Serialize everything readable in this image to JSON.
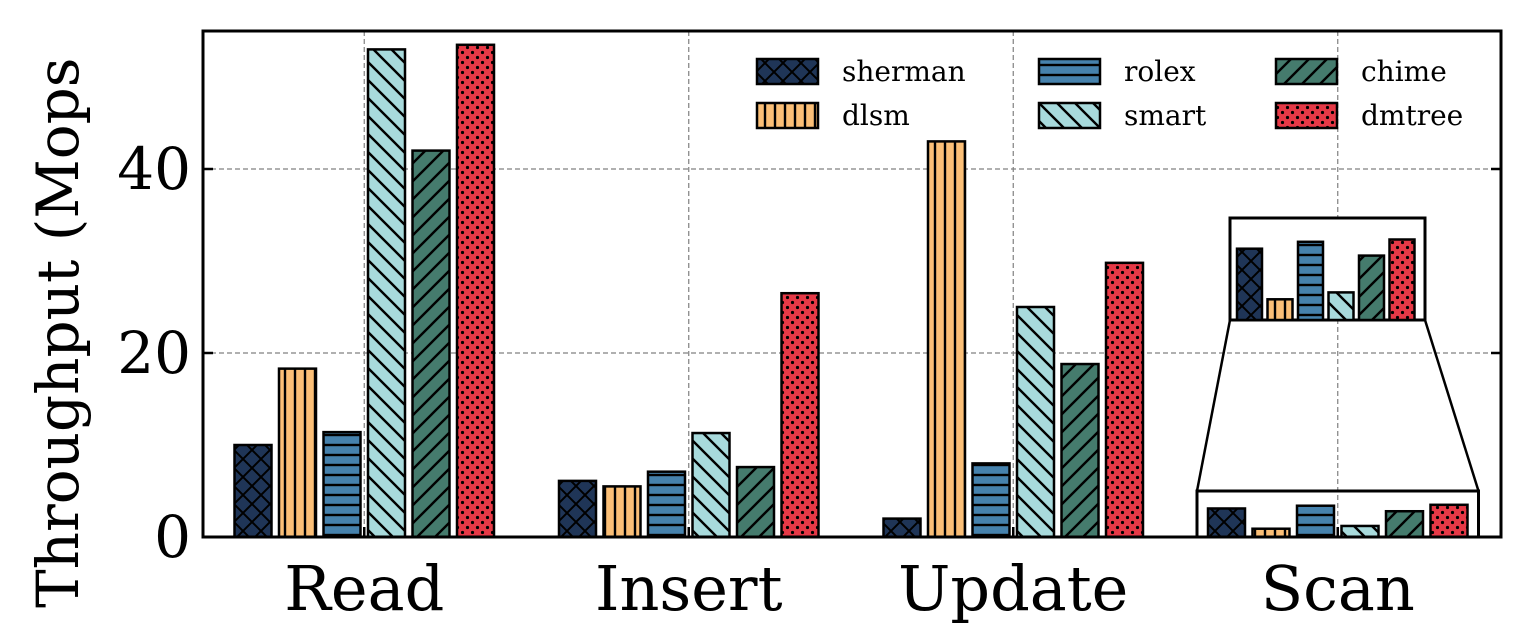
{
  "chart_data": {
    "type": "bar",
    "title": "",
    "xlabel": "",
    "ylabel": "Throughput (Mops",
    "ylim": [
      0,
      55
    ],
    "yticks": [
      0,
      20,
      40
    ],
    "grid": true,
    "legend_position": "top-right",
    "categories": [
      "Read",
      "Insert",
      "Update",
      "Scan"
    ],
    "series": [
      {
        "name": "sherman",
        "color": "#1f3557",
        "hatch": "crosshatch",
        "values": [
          10.0,
          6.1,
          2.0,
          3.1
        ]
      },
      {
        "name": "dlsm",
        "color": "#fbbf77",
        "hatch": "vertical",
        "values": [
          18.3,
          5.5,
          43.0,
          0.9
        ]
      },
      {
        "name": "rolex",
        "color": "#4682ad",
        "hatch": "horizontal",
        "values": [
          11.4,
          7.1,
          8.0,
          3.4
        ]
      },
      {
        "name": "smart",
        "color": "#a8dadc",
        "hatch": "backslash",
        "values": [
          53.0,
          11.3,
          25.0,
          1.2
        ]
      },
      {
        "name": "chime",
        "color": "#457b6d",
        "hatch": "slash",
        "values": [
          42.0,
          7.6,
          18.8,
          2.8
        ]
      },
      {
        "name": "dmtree",
        "color": "#e63946",
        "hatch": "dots",
        "values": [
          53.5,
          26.5,
          29.8,
          3.5
        ]
      }
    ],
    "inset": {
      "category": "Scan",
      "zoom": "magnified view of Scan bars"
    }
  }
}
